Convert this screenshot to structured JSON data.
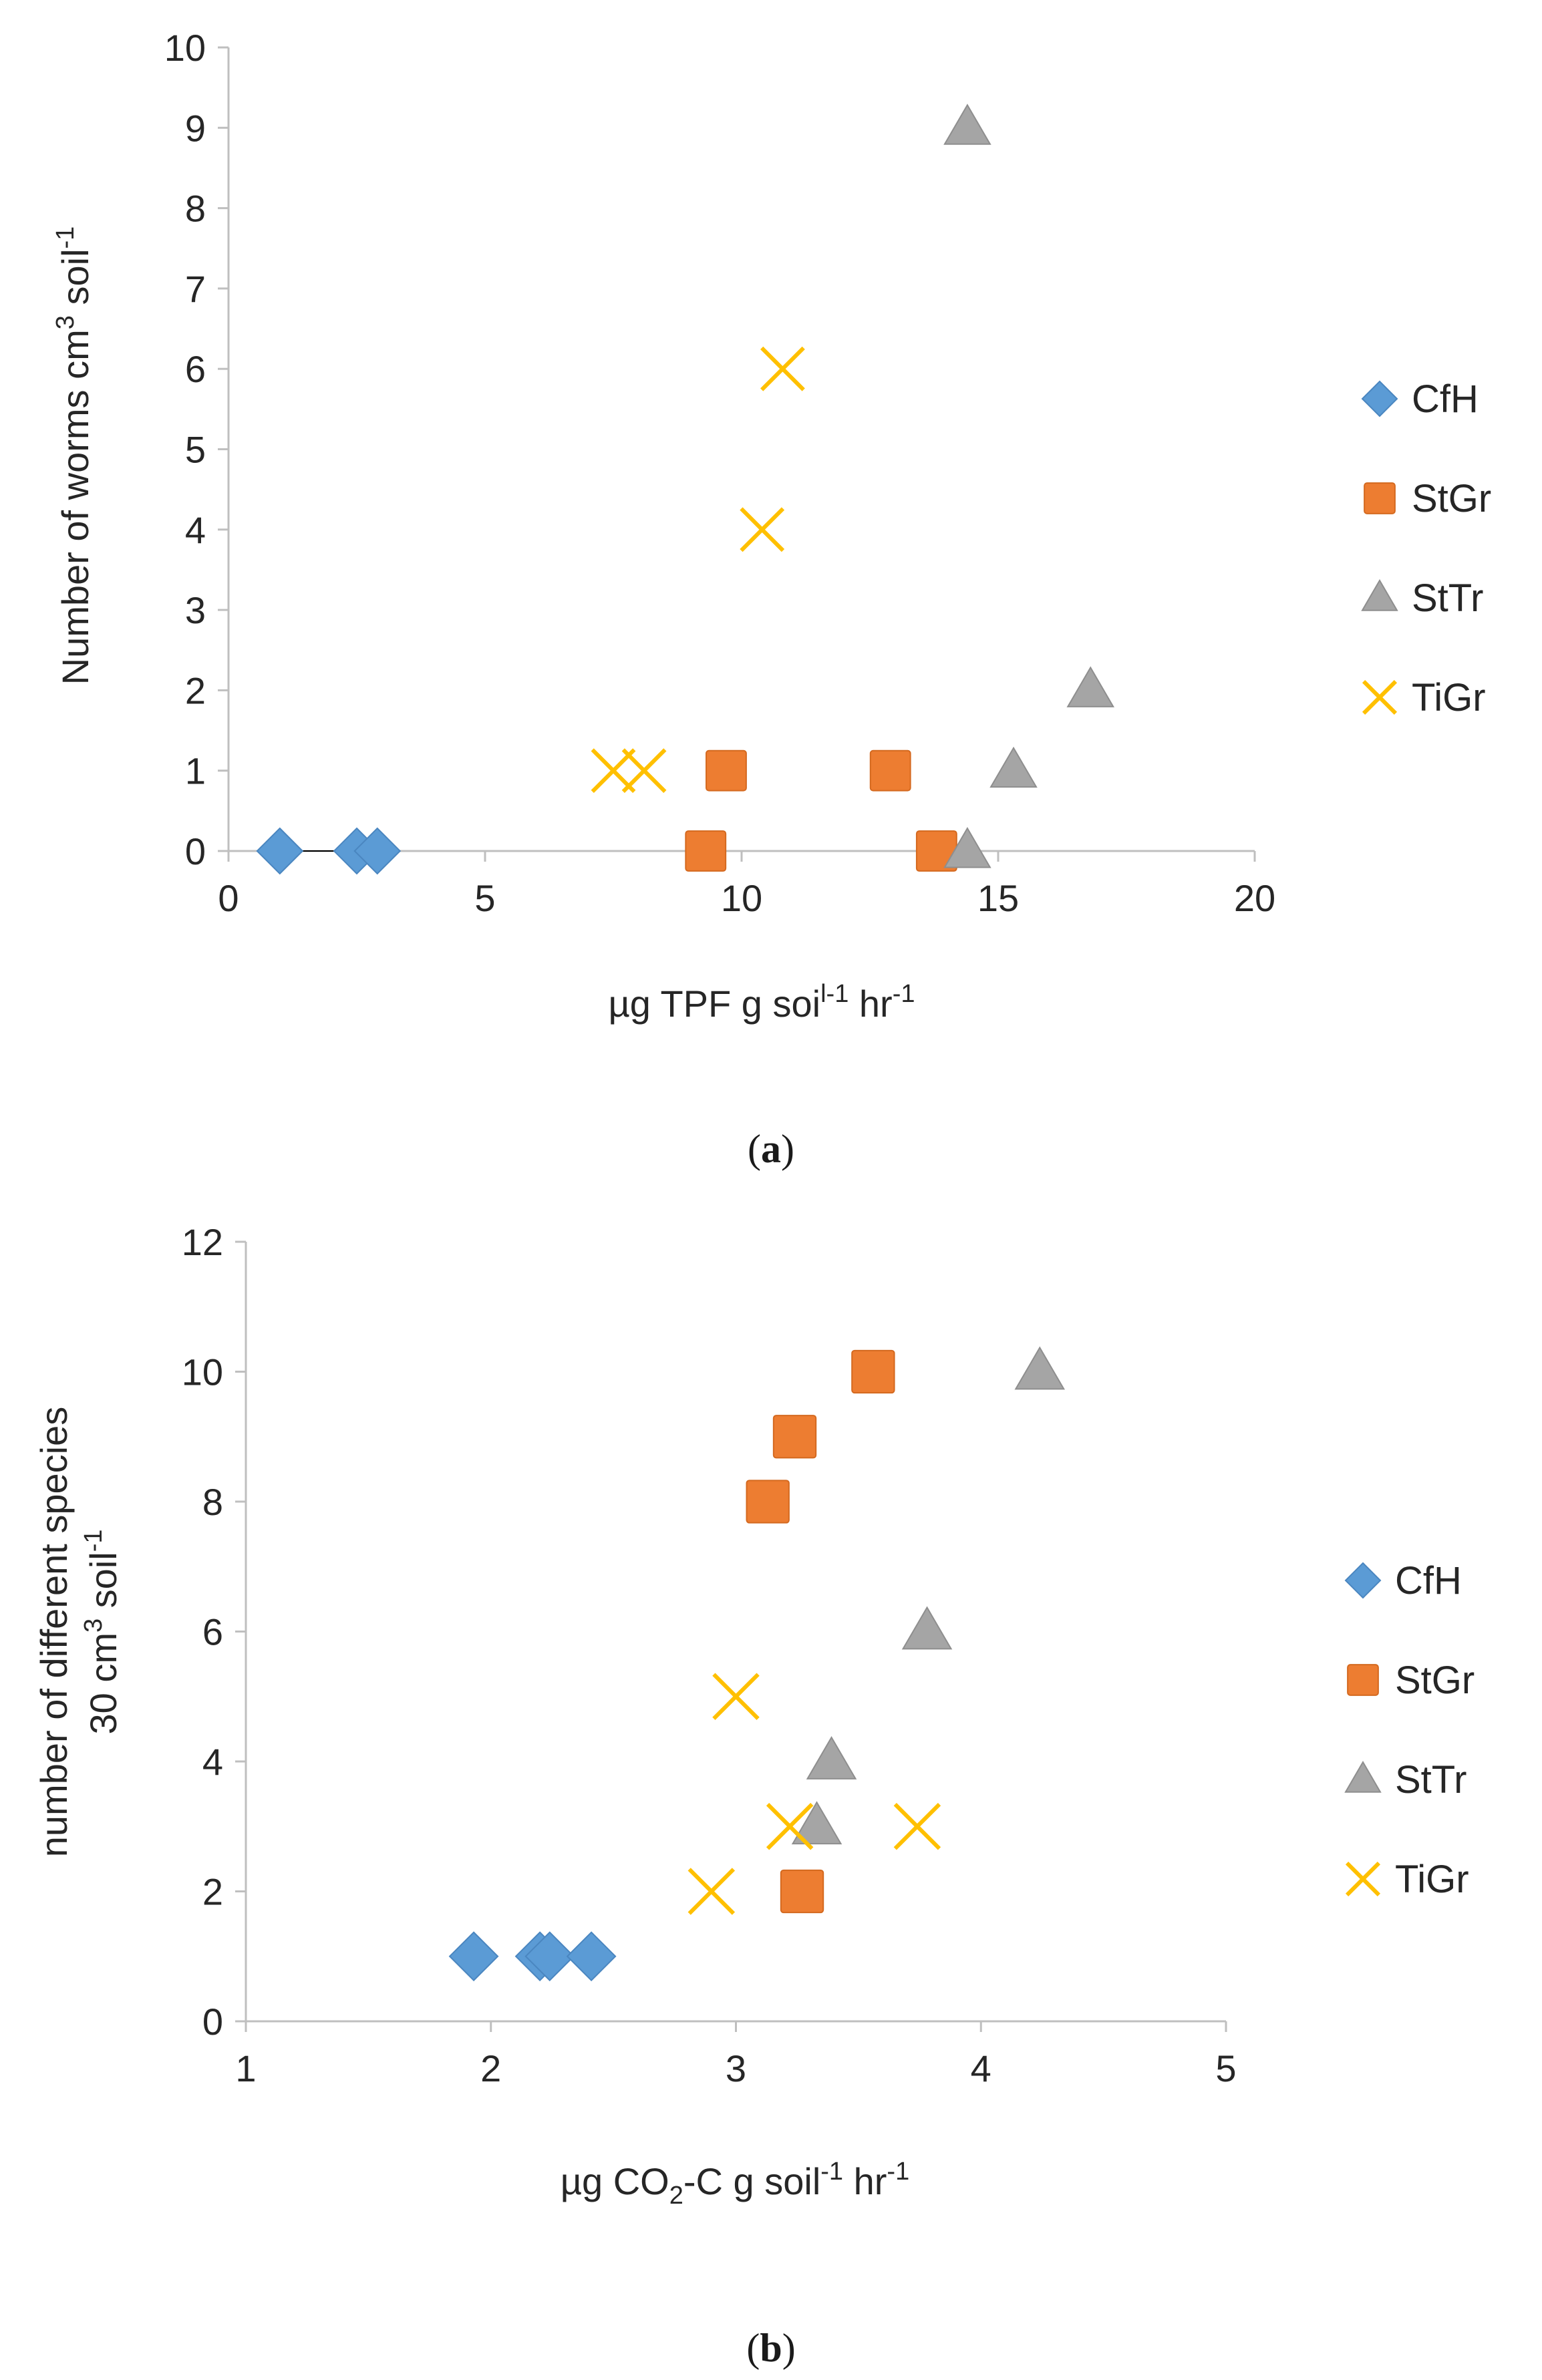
{
  "chart_data": [
    {
      "panel_label_prefix": "(",
      "panel_letter": "a",
      "panel_label_suffix": ")",
      "type": "scatter",
      "title": "",
      "xlabel": {
        "text": "µg TPF g soi",
        "sup1": "l-1",
        "mid": " hr",
        "sup2": "-1"
      },
      "ylabel": {
        "text": "Number of worms cm",
        "sup1": "3",
        "mid": " soil",
        "sup2": "-1"
      },
      "xlim": [
        0,
        20
      ],
      "ylim": [
        0,
        10
      ],
      "xticks": [
        "0",
        "5",
        "10",
        "15",
        "20"
      ],
      "yticks": [
        "0",
        "1",
        "2",
        "3",
        "4",
        "5",
        "6",
        "7",
        "8",
        "9",
        "10"
      ],
      "x_axis_at_zero": true,
      "grid": false,
      "legend_position": "right",
      "series": [
        {
          "name": "CfH",
          "marker": "diamond",
          "color": "#5B9BD5",
          "points": [
            [
              1.0,
              0
            ],
            [
              2.5,
              0
            ],
            [
              2.9,
              0
            ]
          ]
        },
        {
          "name": "StGr",
          "marker": "square",
          "color": "#ED7D31",
          "points": [
            [
              9.3,
              0
            ],
            [
              9.7,
              1
            ],
            [
              12.9,
              1
            ],
            [
              13.8,
              0
            ]
          ]
        },
        {
          "name": "StTr",
          "marker": "triangle",
          "color": "#A5A5A5",
          "points": [
            [
              14.4,
              9
            ],
            [
              14.4,
              0
            ],
            [
              15.3,
              1
            ],
            [
              16.8,
              2
            ]
          ]
        },
        {
          "name": "TiGr",
          "marker": "x",
          "color": "#FFC000",
          "points": [
            [
              7.5,
              1
            ],
            [
              8.1,
              1
            ],
            [
              10.4,
              4
            ],
            [
              10.8,
              6
            ]
          ]
        }
      ]
    },
    {
      "panel_label_prefix": "(",
      "panel_letter": "b",
      "panel_label_suffix": ")",
      "type": "scatter",
      "title": "",
      "xlabel": {
        "text": "µg CO",
        "sub1": "2",
        "rest": "-C g soil",
        "sup1": "-1",
        "mid": " hr",
        "sup2": "-1"
      },
      "ylabel": {
        "line1": "number of different species",
        "line2": "30 cm",
        "sup1": "3",
        "mid": " soil",
        "sup2": "-1"
      },
      "xlim": [
        1,
        5
      ],
      "ylim": [
        0,
        12
      ],
      "xticks": [
        "1",
        "2",
        "3",
        "4",
        "5"
      ],
      "yticks": [
        "0",
        "2",
        "4",
        "6",
        "8",
        "10",
        "12"
      ],
      "grid": false,
      "legend_position": "right",
      "series": [
        {
          "name": "CfH",
          "marker": "diamond",
          "color": "#5B9BD5",
          "points": [
            [
              1.93,
              1
            ],
            [
              2.2,
              1
            ],
            [
              2.24,
              1
            ],
            [
              2.41,
              1
            ]
          ]
        },
        {
          "name": "StGr",
          "marker": "square",
          "color": "#ED7D31",
          "points": [
            [
              3.13,
              8
            ],
            [
              3.24,
              9
            ],
            [
              3.56,
              10
            ],
            [
              3.27,
              2
            ]
          ]
        },
        {
          "name": "StTr",
          "marker": "triangle",
          "color": "#A5A5A5",
          "points": [
            [
              4.24,
              10
            ],
            [
              3.78,
              6
            ],
            [
              3.39,
              4
            ],
            [
              3.33,
              3
            ]
          ]
        },
        {
          "name": "TiGr",
          "marker": "x",
          "color": "#FFC000",
          "points": [
            [
              3.0,
              5
            ],
            [
              3.22,
              3
            ],
            [
              3.74,
              3
            ],
            [
              2.9,
              2
            ]
          ]
        }
      ]
    }
  ]
}
